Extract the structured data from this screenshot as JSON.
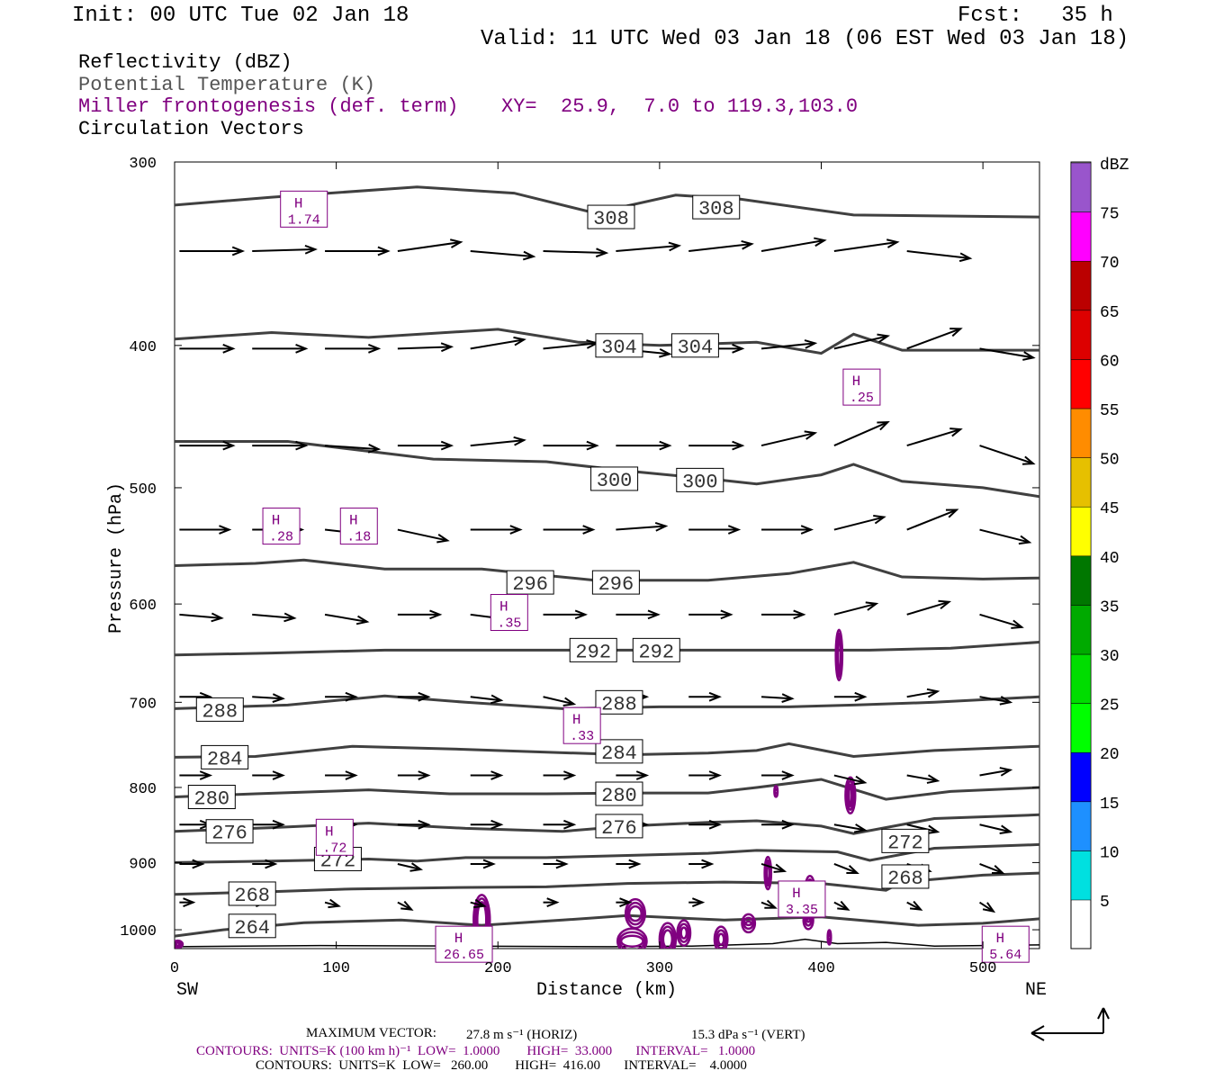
{
  "header": {
    "init": "Init: 00 UTC Tue 02 Jan 18",
    "fcst": "Fcst:   35 h",
    "valid": "Valid: 11 UTC Wed 03 Jan 18 (06 EST Wed 03 Jan 18)"
  },
  "legend": {
    "field1": "Reflectivity (dBZ)",
    "field2": "Potential Temperature (K)",
    "field3": "Miller frontogenesis (def. term)",
    "xy": "XY=  25.9,  7.0 to 119.3,103.0",
    "field4": "Circulation Vectors"
  },
  "footer": {
    "maxvec_label": "MAXIMUM VECTOR:",
    "maxvec_horiz": "27.8 m s⁻¹ (HORIZ)",
    "maxvec_vert": "15.3 dPa s⁻¹ (VERT)",
    "contours_purple": "CONTOURS:  UNITS=K (100 km h)⁻¹  LOW=  1.0000        HIGH=  33.000       INTERVAL=   1.0000",
    "contours_black": "CONTOURS:  UNITS=K  LOW=   260.00        HIGH=  416.00       INTERVAL=    4.0000"
  },
  "colors": {
    "theta": "#404040",
    "frontogenesis": "#800080",
    "vector": "#000000"
  },
  "colorbar": {
    "unit": "dBZ",
    "labels": [
      "5",
      "10",
      "15",
      "20",
      "25",
      "30",
      "35",
      "40",
      "45",
      "50",
      "55",
      "60",
      "65",
      "70",
      "75"
    ],
    "colors": [
      "#00e0e0",
      "#1e90ff",
      "#0000ff",
      "#00ff00",
      "#00dd00",
      "#00aa00",
      "#007700",
      "#ffff00",
      "#e6c000",
      "#ff8c00",
      "#ff0000",
      "#dd0000",
      "#bb0000",
      "#ff00ff",
      "#9955cc"
    ]
  },
  "chart_data": {
    "type": "cross-section",
    "xlabel": "Distance (km)",
    "ylabel": "Pressure (hPa)",
    "xlim": [
      0,
      535
    ],
    "ylim": [
      1030,
      300
    ],
    "y_scale": "log",
    "x_ticks": [
      0,
      100,
      200,
      300,
      400,
      500
    ],
    "y_ticks": [
      300,
      400,
      500,
      600,
      700,
      800,
      900,
      1000
    ],
    "x_end_labels": [
      "SW",
      "NE"
    ],
    "theta_labels": [
      {
        "text": "308",
        "x": 270,
        "p": 327
      },
      {
        "text": "308",
        "x": 335,
        "p": 322
      },
      {
        "text": "304",
        "x": 275,
        "p": 400
      },
      {
        "text": "304",
        "x": 322,
        "p": 400
      },
      {
        "text": "300",
        "x": 272,
        "p": 493
      },
      {
        "text": "300",
        "x": 325,
        "p": 494
      },
      {
        "text": "296",
        "x": 220,
        "p": 580
      },
      {
        "text": "296",
        "x": 273,
        "p": 580
      },
      {
        "text": "292",
        "x": 259,
        "p": 645
      },
      {
        "text": "292",
        "x": 298,
        "p": 645
      },
      {
        "text": "288",
        "x": 28,
        "p": 708
      },
      {
        "text": "288",
        "x": 275,
        "p": 700
      },
      {
        "text": "284",
        "x": 31,
        "p": 763
      },
      {
        "text": "284",
        "x": 275,
        "p": 756
      },
      {
        "text": "280",
        "x": 23,
        "p": 812
      },
      {
        "text": "280",
        "x": 275,
        "p": 808
      },
      {
        "text": "276",
        "x": 34,
        "p": 857
      },
      {
        "text": "276",
        "x": 275,
        "p": 850
      },
      {
        "text": "272",
        "x": 101,
        "p": 895
      },
      {
        "text": "272",
        "x": 452,
        "p": 870
      },
      {
        "text": "268",
        "x": 48,
        "p": 945
      },
      {
        "text": "268",
        "x": 452,
        "p": 920
      },
      {
        "text": "264",
        "x": 48,
        "p": 994
      }
    ],
    "frontogenesis_maxima": [
      {
        "label": "H",
        "value": "1.74",
        "x": 80,
        "p": 323
      },
      {
        "label": "H",
        "value": ".25",
        "x": 425,
        "p": 427
      },
      {
        "label": "H",
        "value": ".28",
        "x": 66,
        "p": 531
      },
      {
        "label": "H",
        "value": ".18",
        "x": 114,
        "p": 531
      },
      {
        "label": "H",
        "value": ".35",
        "x": 207,
        "p": 608
      },
      {
        "label": "H",
        "value": ".33",
        "x": 252,
        "p": 726
      },
      {
        "label": "H",
        "value": ".72",
        "x": 99,
        "p": 865
      },
      {
        "label": "H",
        "value": "3.35",
        "x": 388,
        "p": 953
      },
      {
        "label": "H",
        "value": "26.65",
        "x": 179,
        "p": 1023
      },
      {
        "label": "H",
        "value": "5.64",
        "x": 514,
        "p": 1023
      }
    ],
    "theta_contour_values": [
      264,
      268,
      272,
      276,
      280,
      284,
      288,
      292,
      296,
      300,
      304,
      308
    ]
  }
}
